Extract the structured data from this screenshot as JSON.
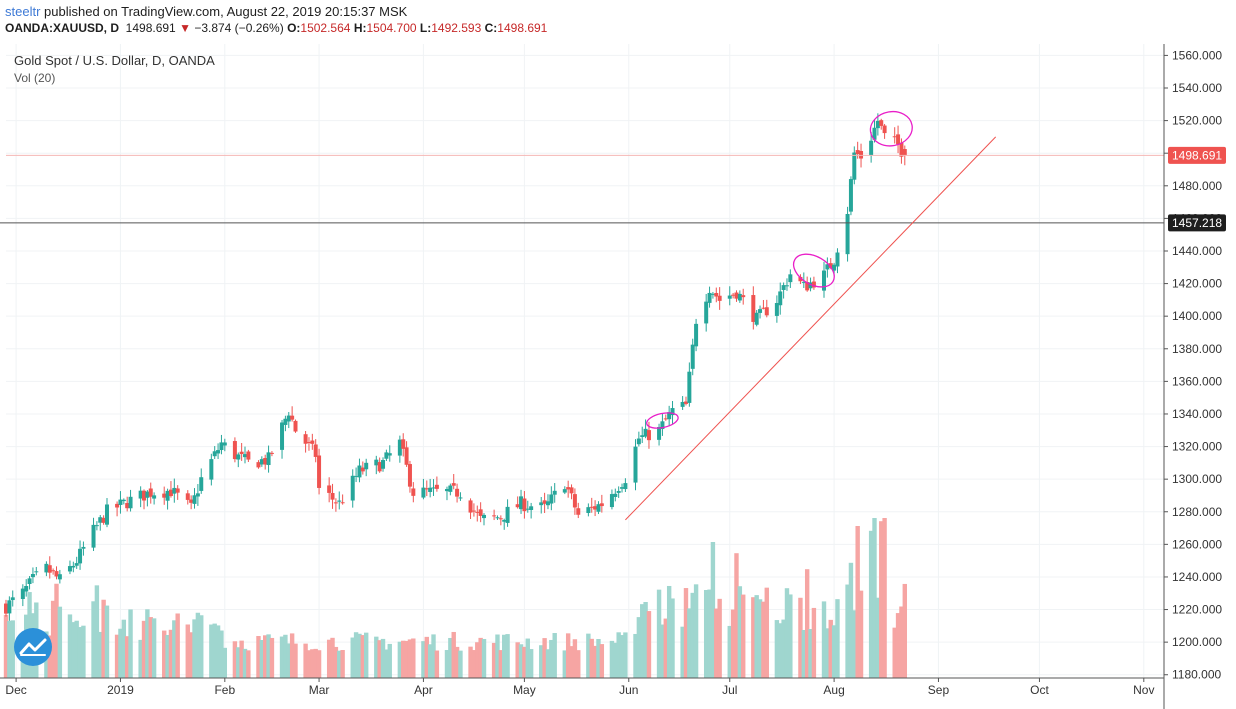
{
  "header": {
    "published_user": "steeltr",
    "published_text": " published on TradingView.com, August 22, 2019 20:15:37 MSK",
    "symbol": "OANDA:XAUUSD, D",
    "last": "1498.691",
    "change_arrow": "▼",
    "change": "−3.874 (−0.26%)",
    "o_label": "O:",
    "o_value": "1502.564",
    "h_label": "H:",
    "h_value": "1504.700",
    "l_label": "L:",
    "l_value": "1492.593",
    "c_label": "C:",
    "c_value": "1498.691"
  },
  "legend": {
    "title": "Gold Spot / U.S. Dollar, D, OANDA",
    "volume": "Vol (20)"
  },
  "price_labels": {
    "last_price": "1498.691",
    "horizontal_line": "1457.218"
  },
  "colors": {
    "up": "#26a69a",
    "down": "#ef5350",
    "vol_up": "#9fd6cf",
    "vol_down": "#f6a5a3",
    "trendline": "#ef5350",
    "annotation": "#e91ec8",
    "last_line": "#f4b7b5",
    "hline": "#555555",
    "brand": "#3e7ad6"
  },
  "chart_data": {
    "type": "candlestick",
    "title": "Gold Spot / U.S. Dollar, D, OANDA",
    "y_axis": {
      "ticks": [
        1180,
        1200,
        1220,
        1240,
        1260,
        1280,
        1300,
        1320,
        1340,
        1360,
        1380,
        1400,
        1420,
        1440,
        1460,
        1480,
        1500,
        1520,
        1540,
        1560
      ],
      "tick_labels": [
        "1180.000",
        "1200.000",
        "1220.000",
        "1240.000",
        "1260.000",
        "1280.000",
        "1300.000",
        "1320.000",
        "1340.000",
        "1360.000",
        "1380.000",
        "1400.000",
        "1420.000",
        "1440.000",
        "1460.000",
        "1480.000",
        "1500.000",
        "1520.000",
        "1540.000",
        "1560.000"
      ],
      "range": [
        1178,
        1567
      ]
    },
    "x_axis": {
      "labels": [
        "Dec",
        "2019",
        "Feb",
        "Mar",
        "Apr",
        "May",
        "Jun",
        "Jul",
        "Aug",
        "Sep",
        "Oct",
        "Nov"
      ],
      "range": [
        "2018-11-28",
        "2019-11-07"
      ]
    },
    "ohlc_anchors": [
      [
        "2018-11-28",
        1222
      ],
      [
        "2018-12-03",
        1230
      ],
      [
        "2018-12-06",
        1238
      ],
      [
        "2018-12-10",
        1245
      ],
      [
        "2018-12-14",
        1238
      ],
      [
        "2018-12-19",
        1250
      ],
      [
        "2018-12-24",
        1268
      ],
      [
        "2018-12-28",
        1280
      ],
      [
        "2019-01-04",
        1287
      ],
      [
        "2019-01-10",
        1292
      ],
      [
        "2019-01-16",
        1293
      ],
      [
        "2019-01-22",
        1282
      ],
      [
        "2019-01-25",
        1300
      ],
      [
        "2019-01-31",
        1322
      ],
      [
        "2019-02-04",
        1315
      ],
      [
        "2019-02-08",
        1310
      ],
      [
        "2019-02-14",
        1312
      ],
      [
        "2019-02-20",
        1342
      ],
      [
        "2019-02-22",
        1330
      ],
      [
        "2019-02-28",
        1315
      ],
      [
        "2019-03-01",
        1294
      ],
      [
        "2019-03-07",
        1285
      ],
      [
        "2019-03-13",
        1305
      ],
      [
        "2019-03-20",
        1310
      ],
      [
        "2019-03-25",
        1322
      ],
      [
        "2019-03-29",
        1292
      ],
      [
        "2019-04-05",
        1292
      ],
      [
        "2019-04-12",
        1292
      ],
      [
        "2019-04-18",
        1275
      ],
      [
        "2019-04-24",
        1277
      ],
      [
        "2019-04-30",
        1285
      ],
      [
        "2019-05-07",
        1282
      ],
      [
        "2019-05-13",
        1298
      ],
      [
        "2019-05-17",
        1278
      ],
      [
        "2019-05-24",
        1285
      ],
      [
        "2019-05-31",
        1301
      ],
      [
        "2019-06-04",
        1325
      ],
      [
        "2019-06-10",
        1330
      ],
      [
        "2019-06-14",
        1342
      ],
      [
        "2019-06-18",
        1345
      ],
      [
        "2019-06-21",
        1398
      ],
      [
        "2019-06-25",
        1418
      ],
      [
        "2019-06-28",
        1410
      ],
      [
        "2019-07-03",
        1415
      ],
      [
        "2019-07-09",
        1398
      ],
      [
        "2019-07-15",
        1410
      ],
      [
        "2019-07-19",
        1426
      ],
      [
        "2019-07-23",
        1418
      ],
      [
        "2019-07-29",
        1425
      ],
      [
        "2019-08-01",
        1435
      ],
      [
        "2019-08-05",
        1465
      ],
      [
        "2019-08-07",
        1500
      ],
      [
        "2019-08-09",
        1498
      ],
      [
        "2019-08-12",
        1510
      ],
      [
        "2019-08-14",
        1520
      ],
      [
        "2019-08-16",
        1510
      ],
      [
        "2019-08-20",
        1505
      ],
      [
        "2019-08-22",
        1498.691
      ]
    ],
    "volume_spikes": [
      [
        "2019-06-24",
        0.55
      ],
      [
        "2019-06-26",
        0.85
      ],
      [
        "2019-07-03",
        0.78
      ],
      [
        "2019-07-24",
        0.68
      ],
      [
        "2019-08-06",
        0.72
      ],
      [
        "2019-08-08",
        0.95
      ],
      [
        "2019-08-12",
        0.92
      ],
      [
        "2019-08-13",
        1.0
      ],
      [
        "2019-08-15",
        0.98
      ],
      [
        "2019-08-16",
        1.0
      ]
    ],
    "last_price": 1498.691,
    "horizontal_line": 1457.218,
    "trendline": [
      [
        "2019-05-31",
        1275
      ],
      [
        "2019-09-18",
        1510
      ]
    ]
  }
}
